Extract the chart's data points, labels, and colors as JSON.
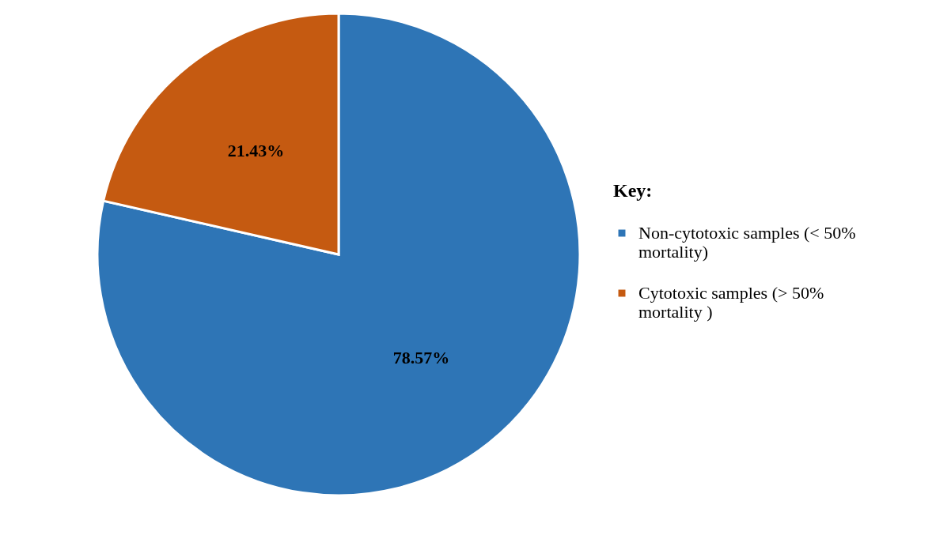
{
  "chart_data": {
    "type": "pie",
    "legend_title": "Key:",
    "categories": [
      "Non-cytotoxic samples (< 50% mortality)",
      "Cytotoxic samples (> 50% mortality )"
    ],
    "values": [
      78.57,
      21.43
    ],
    "colors": [
      "#2e75b6",
      "#c55a11"
    ],
    "value_labels": [
      "78.57%",
      "21.43%"
    ],
    "legend": "right"
  }
}
